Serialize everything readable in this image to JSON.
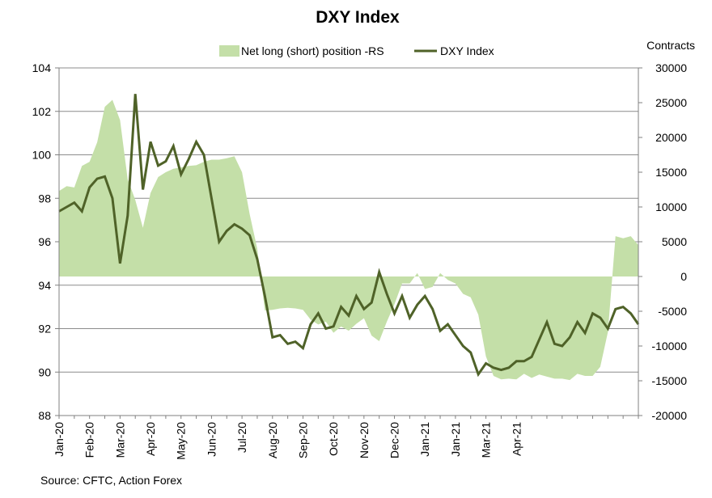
{
  "chart_data": {
    "type": "line",
    "title": "DXY Index",
    "right_axis_title": "Contracts",
    "source": "Source: CFTC, Action Forex",
    "legend": {
      "placement": "top",
      "area_label": "Net long (short) position -RS",
      "line_label": "DXY Index"
    },
    "left_axis": {
      "min": 88,
      "max": 104,
      "step": 2,
      "labels": [
        "88",
        "90",
        "92",
        "94",
        "96",
        "98",
        "100",
        "102",
        "104"
      ]
    },
    "right_axis": {
      "min": -20000,
      "max": 30000,
      "step": 5000,
      "labels": [
        "-20000",
        "-15000",
        "-10000",
        "-5000",
        "0",
        "5000",
        "10000",
        "15000",
        "20000",
        "25000",
        "30000"
      ]
    },
    "x_labels": [
      "Jan-20",
      "Feb-20",
      "Mar-20",
      "Apr-20",
      "May-20",
      "Jun-20",
      "Jul-20",
      "Aug-20",
      "Sep-20",
      "Oct-20",
      "Nov-20",
      "Dec-20",
      "Jan-21",
      "Jan-21",
      "Mar-21",
      "Apr-21"
    ],
    "x_tick_weeks": [
      0,
      4,
      8,
      12,
      16,
      20,
      24,
      28,
      32,
      36,
      40,
      44,
      48,
      52,
      56,
      60
    ],
    "series": [
      {
        "name": "Net long (short) position -RS",
        "kind": "area",
        "axis": "right",
        "color": "#c4dfa8",
        "values": [
          12300,
          13000,
          12800,
          15900,
          16500,
          19300,
          24400,
          25400,
          22500,
          14000,
          11000,
          7000,
          12000,
          14300,
          15000,
          15500,
          15700,
          15900,
          16000,
          16500,
          16800,
          16800,
          17000,
          17300,
          15000,
          9000,
          4000,
          -4900,
          -4800,
          -4600,
          -4500,
          -4600,
          -4800,
          -6200,
          -6900,
          -6500,
          -8100,
          -7200,
          -7800,
          -6800,
          -6000,
          -8500,
          -9300,
          -6500,
          -4000,
          -1000,
          -1000,
          500,
          -1800,
          -1500,
          500,
          -500,
          -1000,
          -2500,
          -3000,
          -5500,
          -11500,
          -14300,
          -14800,
          -14700,
          -14800,
          -14000,
          -14600,
          -14100,
          -14400,
          -14700,
          -14700,
          -14900,
          -14000,
          -14300,
          -14300,
          -13000,
          -8000,
          5800,
          5500,
          5800,
          4500
        ]
      },
      {
        "name": "DXY Index",
        "kind": "line",
        "axis": "left",
        "color": "#4f6228",
        "values": [
          97.4,
          97.6,
          97.8,
          97.4,
          98.5,
          98.9,
          99.0,
          98.0,
          95.0,
          97.2,
          102.8,
          98.4,
          100.6,
          99.5,
          99.7,
          100.4,
          99.1,
          99.8,
          100.6,
          100.0,
          98.0,
          96.0,
          96.5,
          96.8,
          96.6,
          96.3,
          95.2,
          93.5,
          91.6,
          91.7,
          91.3,
          91.4,
          91.1,
          92.2,
          92.7,
          92.0,
          92.1,
          93.0,
          92.6,
          93.5,
          92.9,
          93.2,
          94.6,
          93.6,
          92.7,
          93.5,
          92.5,
          93.1,
          93.5,
          92.9,
          91.9,
          92.2,
          91.7,
          91.2,
          90.9,
          89.9,
          90.4,
          90.2,
          90.1,
          90.2,
          90.5,
          90.5,
          90.7,
          91.5,
          92.3,
          91.3,
          91.2,
          91.6,
          92.3,
          91.8,
          92.7,
          92.5,
          92.0,
          92.9,
          93.0,
          92.7,
          92.2
        ]
      }
    ],
    "grid": true
  }
}
